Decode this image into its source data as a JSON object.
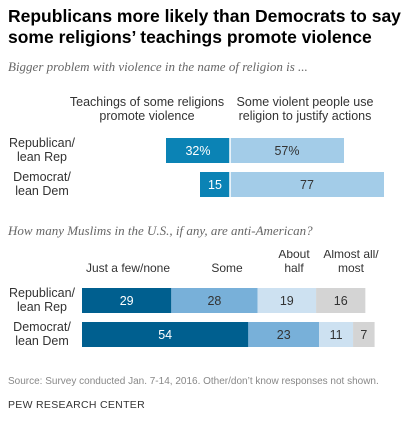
{
  "header": {
    "title": "Republicans more likely than Democrats to say some religions’ teachings promote violence",
    "subtitle": "Bigger problem with violence in the name of religion is ..."
  },
  "chart_data": [
    {
      "type": "bar",
      "orientation": "diverging-horizontal",
      "categories": [
        "Republican/\nlean Rep",
        "Democrat/\nlean Dem"
      ],
      "series": [
        {
          "name": "Teachings of some religions\npromote violence",
          "values": [
            32,
            15
          ],
          "color": "#0b83b5"
        },
        {
          "name": "Some violent people use\nreligion to justify actions",
          "values": [
            57,
            77
          ],
          "color": "#a3cce8"
        }
      ]
    },
    {
      "type": "bar",
      "orientation": "stacked-horizontal",
      "title": "How many Muslims in the U.S., if any, are anti-American?",
      "categories": [
        "Republican/\nlean Rep",
        "Democrat/\nlean Dem"
      ],
      "series": [
        {
          "name": "Just a few/none",
          "values": [
            29,
            54
          ],
          "color": "#005f8f"
        },
        {
          "name": "Some",
          "values": [
            28,
            23
          ],
          "color": "#78b0d9"
        },
        {
          "name": "About\nhalf",
          "values": [
            19,
            11
          ],
          "color": "#cde1f1"
        },
        {
          "name": "Almost all/\nmost",
          "values": [
            16,
            7
          ],
          "color": "#d4d4d4"
        }
      ]
    }
  ],
  "footer": {
    "source": "Source: Survey conducted Jan. 7-14, 2016. Other/don’t know responses not shown.",
    "org": "PEW RESEARCH CENTER"
  }
}
